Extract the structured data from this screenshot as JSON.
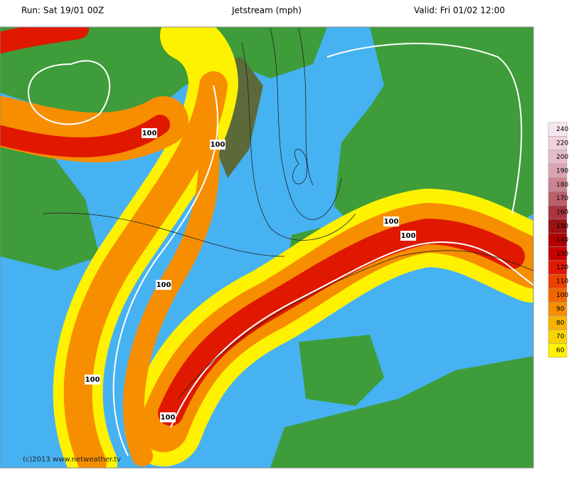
{
  "header": {
    "run": "Run: Sat 19/01 00Z",
    "title": "Jetstream (mph)",
    "valid": "Valid: Fri 01/02 12:00"
  },
  "copyright": "(c)2013 www.netweather.tv",
  "contour_labels": [
    "100",
    "100",
    "100",
    "100",
    "100",
    "100",
    "100"
  ],
  "legend": {
    "entries": [
      {
        "label": "240",
        "color": "#f6e8f0"
      },
      {
        "label": "220",
        "color": "#efd2de"
      },
      {
        "label": "200",
        "color": "#e6bccb"
      },
      {
        "label": "190",
        "color": "#dba4b3"
      },
      {
        "label": "180",
        "color": "#cc8492"
      },
      {
        "label": "170",
        "color": "#bb5e6a"
      },
      {
        "label": "160",
        "color": "#aa3442"
      },
      {
        "label": "150",
        "color": "#9a1212"
      },
      {
        "label": "140",
        "color": "#b20000"
      },
      {
        "label": "130",
        "color": "#ca0000"
      },
      {
        "label": "120",
        "color": "#e01800"
      },
      {
        "label": "110",
        "color": "#ee4000"
      },
      {
        "label": "100",
        "color": "#f26600"
      },
      {
        "label": "90",
        "color": "#f68e00"
      },
      {
        "label": "80",
        "color": "#f8b200"
      },
      {
        "label": "70",
        "color": "#fad400"
      },
      {
        "label": "60",
        "color": "#fff200"
      }
    ]
  }
}
